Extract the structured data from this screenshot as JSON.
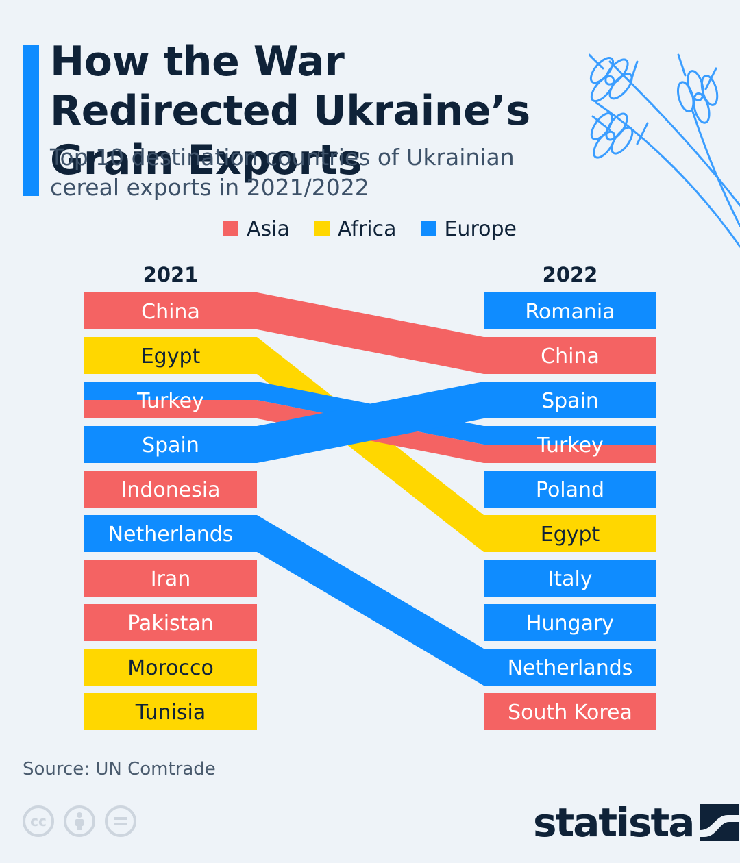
{
  "title": "How the War Redirected Ukraine’s Grain Exports",
  "subtitle": "Top 10 destination countries of Ukrainian cereal exports in 2021/2022",
  "legend": [
    {
      "label": "Asia",
      "color": "#f46363"
    },
    {
      "label": "Africa",
      "color": "#ffd700"
    },
    {
      "label": "Europe",
      "color": "#0f8cff"
    }
  ],
  "colors": {
    "Asia": "#f46363",
    "Africa": "#ffd700",
    "Europe": "#0f8cff",
    "accent": "#0f8cff",
    "text": "#0f2238"
  },
  "chart_data": {
    "type": "table",
    "title": "How the War Redirected Ukraine’s Grain Exports",
    "columns": [
      "2021",
      "2022"
    ],
    "rank_2021": [
      {
        "country": "China",
        "region": "Asia"
      },
      {
        "country": "Egypt",
        "region": "Africa"
      },
      {
        "country": "Turkey",
        "region": "Europe",
        "stripe": "Asia"
      },
      {
        "country": "Spain",
        "region": "Europe"
      },
      {
        "country": "Indonesia",
        "region": "Asia"
      },
      {
        "country": "Netherlands",
        "region": "Europe"
      },
      {
        "country": "Iran",
        "region": "Asia"
      },
      {
        "country": "Pakistan",
        "region": "Asia"
      },
      {
        "country": "Morocco",
        "region": "Africa"
      },
      {
        "country": "Tunisia",
        "region": "Africa"
      }
    ],
    "rank_2022": [
      {
        "country": "Romania",
        "region": "Europe"
      },
      {
        "country": "China",
        "region": "Asia"
      },
      {
        "country": "Spain",
        "region": "Europe"
      },
      {
        "country": "Turkey",
        "region": "Europe",
        "stripe": "Asia"
      },
      {
        "country": "Poland",
        "region": "Europe"
      },
      {
        "country": "Egypt",
        "region": "Africa"
      },
      {
        "country": "Italy",
        "region": "Europe"
      },
      {
        "country": "Hungary",
        "region": "Europe"
      },
      {
        "country": "Netherlands",
        "region": "Europe"
      },
      {
        "country": "South Korea",
        "region": "Asia"
      }
    ]
  },
  "source": "Source: UN Comtrade",
  "license_icons": [
    "cc-icon",
    "attribution-icon",
    "no-derivatives-icon"
  ],
  "brand": "statista"
}
